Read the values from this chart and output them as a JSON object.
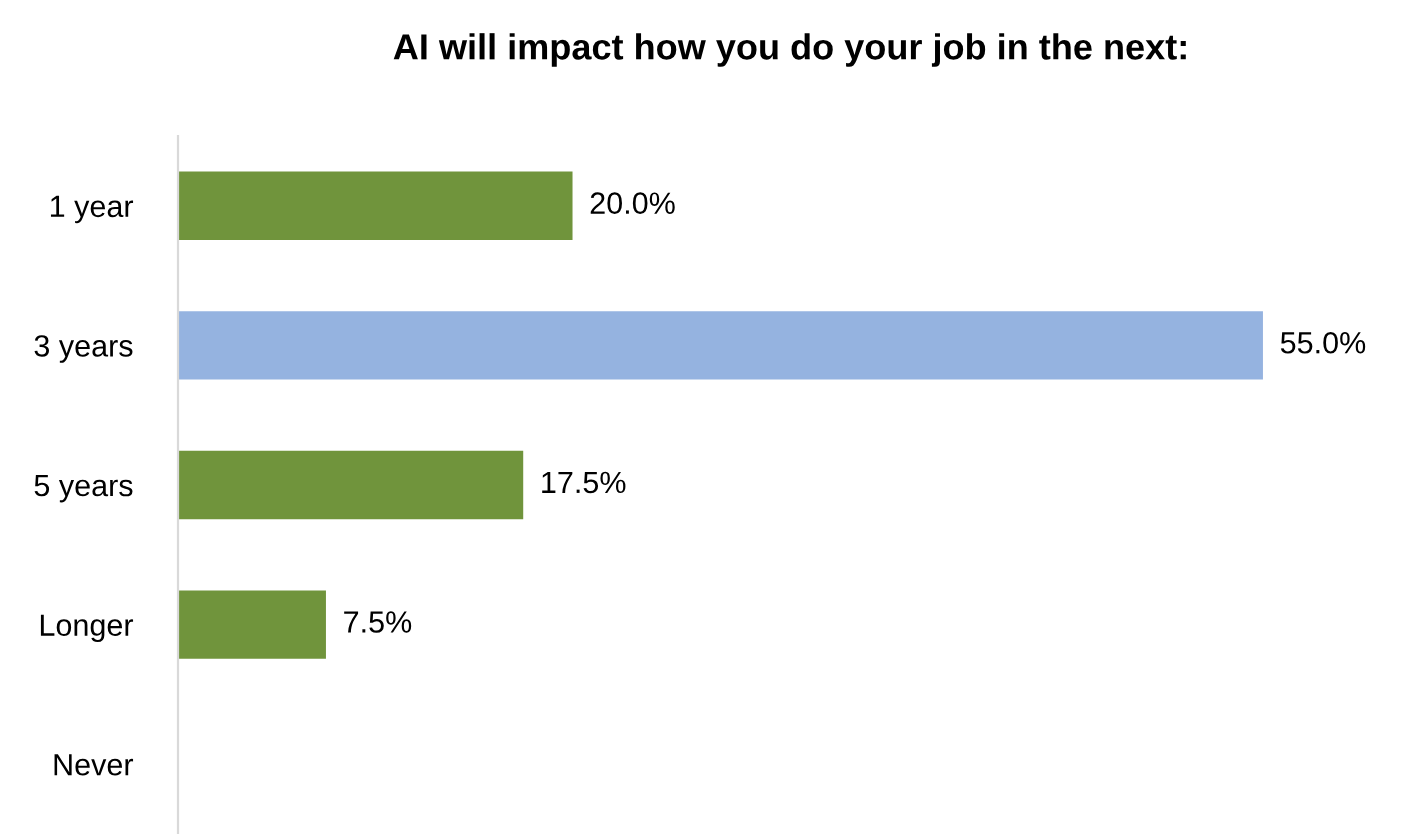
{
  "chart_data": {
    "type": "bar",
    "orientation": "horizontal",
    "title": "AI will impact how you do your job in the next:",
    "categories": [
      "1 year",
      "3 years",
      "5 years",
      "Longer",
      "Never"
    ],
    "values": [
      20.0,
      55.0,
      17.5,
      7.5,
      null
    ],
    "colors": [
      "#70943c",
      "#95b3e0",
      "#70943c",
      "#70943c",
      "#70943c"
    ],
    "value_labels": [
      "20.0%",
      "55.0%",
      "17.5%",
      "7.5%",
      null
    ],
    "grid": false,
    "legend": false
  }
}
